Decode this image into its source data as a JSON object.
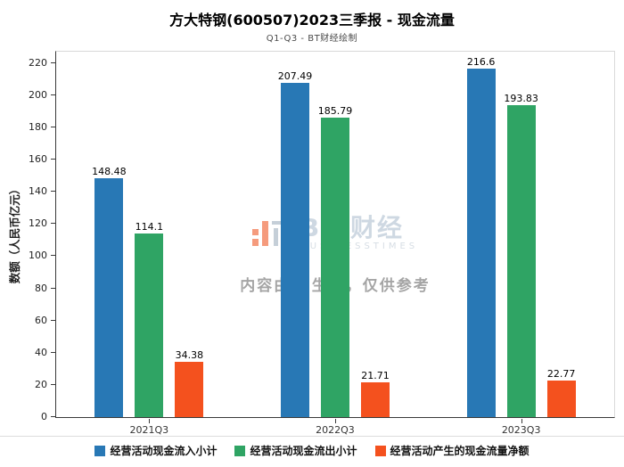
{
  "watermark": {
    "brand": "BT 财经",
    "brand_sub": "BUSINESSTIMES",
    "notice": "内容由AI生成，仅供参考"
  },
  "chart_data": {
    "type": "bar",
    "title": "方大特钢(600507)2023三季报 - 现金流量",
    "subtitle": "Q1-Q3 - BT财经绘制",
    "categories": [
      "2021Q3",
      "2022Q3",
      "2023Q3"
    ],
    "series": [
      {
        "name": "经营活动现金流入小计",
        "color": "#2878b5",
        "values": [
          148.48,
          207.49,
          216.6
        ]
      },
      {
        "name": "经营活动现金流出小计",
        "color": "#2fa464",
        "values": [
          114.1,
          185.79,
          193.83
        ]
      },
      {
        "name": "经营活动产生的现金流量净额",
        "color": "#f4511e",
        "values": [
          34.38,
          21.71,
          22.77
        ]
      }
    ],
    "xlabel": "",
    "ylabel": "数额（人民币亿元）",
    "ylim": [
      0,
      220
    ],
    "ytick_step": 20,
    "grid": false,
    "legend_position": "bottom"
  }
}
